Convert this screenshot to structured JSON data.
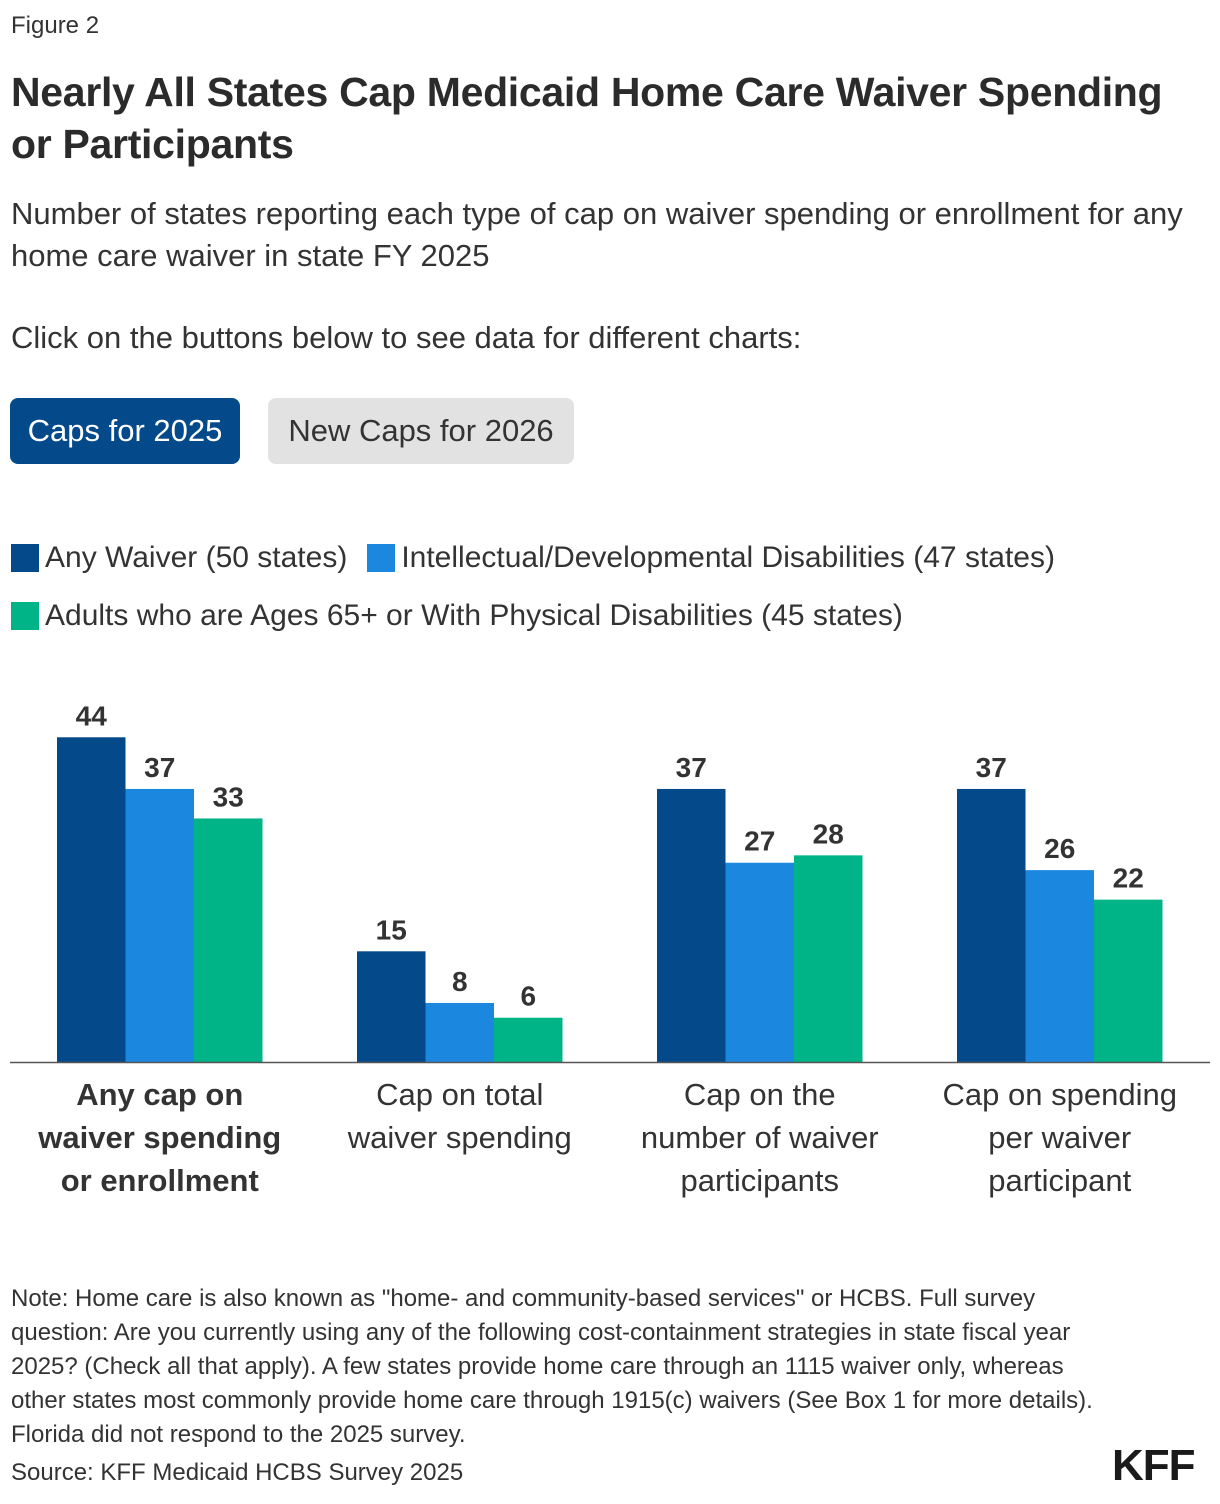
{
  "figure_label": "Figure 2",
  "title": "Nearly All States Cap Medicaid Home Care Waiver Spending or Participants",
  "subtitle": "Number of states reporting each type of cap on waiver spending or enrollment for any home care waiver in state FY 2025",
  "instruction": "Click on the buttons below to see data for different charts:",
  "buttons": [
    {
      "label": "Caps for 2025",
      "active": true
    },
    {
      "label": "New Caps for 2026",
      "active": false
    }
  ],
  "colors": {
    "any_waiver": "#044a8b",
    "idd": "#1c87df",
    "adults": "#00b487",
    "button_active": "#044a8b",
    "button_inactive": "#e2e2e2"
  },
  "chart_data": {
    "type": "bar",
    "categories": [
      "Any cap on waiver spending or enrollment",
      "Cap on total waiver spending",
      "Cap on the number of waiver participants",
      "Cap on spending per waiver participant"
    ],
    "series": [
      {
        "name": "Any Waiver (50 states)",
        "values": [
          44,
          15,
          37,
          37
        ]
      },
      {
        "name": "Intellectual/Developmental Disabilities (47 states)",
        "values": [
          37,
          8,
          27,
          26
        ]
      },
      {
        "name": "Adults who are Ages 65+ or With Physical Disabilities (45 states)",
        "values": [
          33,
          6,
          28,
          22
        ]
      }
    ],
    "ylim": [
      0,
      44
    ],
    "grid": false,
    "legend_placement": "top-left",
    "data_labels": true
  },
  "note": "Note: Home care is also known as \"home- and community-based services\" or HCBS. Full survey question: Are you currently using any of the following cost-containment strategies in state fiscal year 2025? (Check all that apply). A few states provide home care through an 1115 waiver only, whereas other states most commonly provide home care through 1915(c) waivers (See Box 1 for more details). Florida did not respond to the 2025 survey.",
  "source": "Source: KFF Medicaid HCBS Survey 2025",
  "logo": "KFF"
}
